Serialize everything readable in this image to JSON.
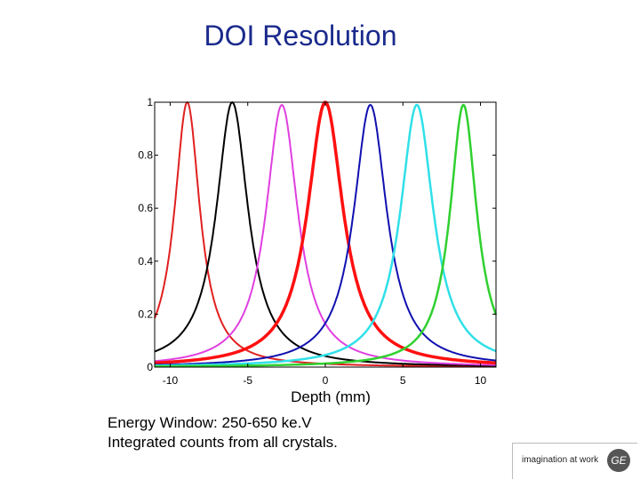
{
  "slide": {
    "title": "DOI Resolution",
    "caption_lines": [
      "Energy Window:  250-650 ke.V",
      "Integrated counts from all crystals."
    ]
  },
  "logo": {
    "tagline": "imagination at work",
    "monogram": "GE"
  },
  "chart_data": {
    "type": "line",
    "xlabel": "Depth (mm)",
    "ylabel": "",
    "xlim": [
      -11,
      11
    ],
    "ylim": [
      0,
      1
    ],
    "xticks": [
      -10,
      -5,
      0,
      5,
      10
    ],
    "yticks": [
      0,
      0.2,
      0.4,
      0.6,
      0.8,
      1
    ],
    "xtick_labels": [
      "-10",
      "-5",
      "0",
      "5",
      "10"
    ],
    "ytick_labels": [
      "0",
      "0.2",
      "0.4",
      "0.6",
      "0.8",
      "1"
    ],
    "grid": false,
    "series": [
      {
        "color": "#e02020",
        "peak_x": -8.9,
        "peak_y": 1.0,
        "fwhm": 2.0,
        "baseline": 0.0,
        "line_width": 2
      },
      {
        "color": "#000000",
        "peak_x": -6.0,
        "peak_y": 1.0,
        "fwhm": 2.5,
        "baseline": 0.0,
        "line_width": 2
      },
      {
        "color": "#e040e0",
        "peak_x": -2.8,
        "peak_y": 0.99,
        "fwhm": 2.5,
        "baseline": 0.0,
        "line_width": 2
      },
      {
        "color": "#ff1010",
        "peak_x": 0.0,
        "peak_y": 1.0,
        "fwhm": 2.8,
        "baseline": 0.0,
        "line_width": 3.5
      },
      {
        "color": "#1010b0",
        "peak_x": 2.9,
        "peak_y": 0.99,
        "fwhm": 2.6,
        "baseline": 0.0,
        "line_width": 2
      },
      {
        "color": "#30e0e8",
        "peak_x": 5.9,
        "peak_y": 0.99,
        "fwhm": 2.6,
        "baseline": 0.0,
        "line_width": 2.5
      },
      {
        "color": "#30d030",
        "peak_x": 8.9,
        "peak_y": 0.99,
        "fwhm": 2.1,
        "baseline": 0.0,
        "line_width": 2.5
      }
    ]
  }
}
